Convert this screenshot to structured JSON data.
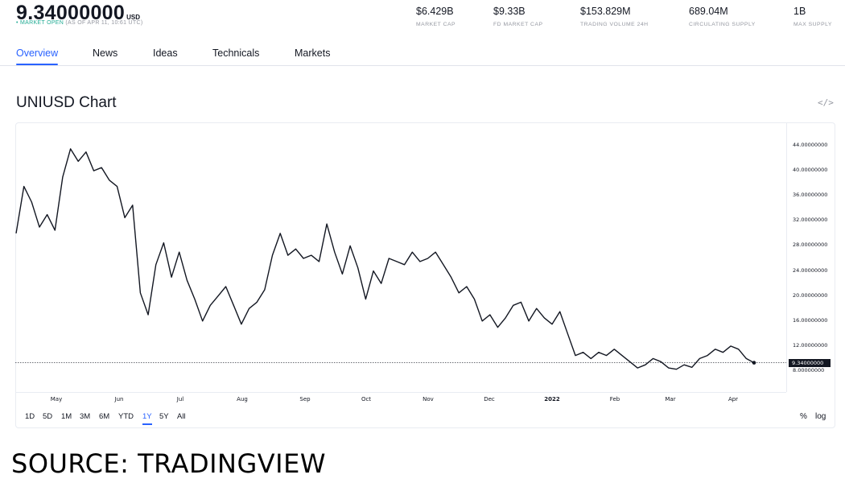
{
  "header": {
    "price": "9.34000000",
    "currency": "USD",
    "market_status": "MARKET OPEN",
    "as_of": "(AS OF APR 11, 10:61 UTC)"
  },
  "stats": [
    {
      "value": "$6.429B",
      "label": "MARKET CAP"
    },
    {
      "value": "$9.33B",
      "label": "FD MARKET CAP"
    },
    {
      "value": "$153.829M",
      "label": "TRADING VOLUME 24H"
    },
    {
      "value": "689.04M",
      "label": "CIRCULATING SUPPLY"
    },
    {
      "value": "1B",
      "label": "MAX SUPPLY"
    }
  ],
  "tabs": [
    {
      "label": "Overview",
      "active": true
    },
    {
      "label": "News"
    },
    {
      "label": "Ideas"
    },
    {
      "label": "Technicals"
    },
    {
      "label": "Markets"
    }
  ],
  "chart_section": {
    "title": "UNIUSD Chart",
    "embed_icon": "</>",
    "current_price_label": "9.34000000"
  },
  "ranges": [
    "1D",
    "5D",
    "1M",
    "3M",
    "6M",
    "YTD",
    "1Y",
    "5Y",
    "All"
  ],
  "active_range": "1Y",
  "scale_buttons": [
    "%",
    "log"
  ],
  "source_caption": "SOURCE: TRADINGVIEW",
  "colors": {
    "accent": "#2962ff",
    "market_open": "#22ab94",
    "line": "#131722",
    "muted": "#9598a1"
  },
  "chart_data": {
    "type": "line",
    "title": "UNIUSD Chart",
    "xlabel": "",
    "ylabel": "USD",
    "x_tick_labels": [
      "May",
      "Jun",
      "Jul",
      "Aug",
      "Sep",
      "Oct",
      "Nov",
      "Dec",
      "2022",
      "Feb",
      "Mar",
      "Apr"
    ],
    "y_tick_labels": [
      "44.00000000",
      "40.00000000",
      "36.00000000",
      "32.00000000",
      "28.00000000",
      "24.00000000",
      "20.00000000",
      "16.00000000",
      "12.00000000",
      "8.00000000"
    ],
    "ylim": [
      6.5,
      46
    ],
    "grid": false,
    "legend": null,
    "current_value": 9.34,
    "series": [
      {
        "name": "UNIUSD",
        "x": [
          "Apr 12",
          "Apr 14",
          "Apr 18",
          "Apr 22",
          "Apr 26",
          "Apr 30",
          "May 4",
          "May 7",
          "May 10",
          "May 13",
          "May 16",
          "May 19",
          "May 21",
          "May 23",
          "May 25",
          "May 28",
          "Jun 1",
          "Jun 4",
          "Jun 8",
          "Jun 12",
          "Jun 16",
          "Jun 20",
          "Jun 24",
          "Jun 28",
          "Jul 2",
          "Jul 6",
          "Jul 10",
          "Jul 14",
          "Jul 18",
          "Jul 22",
          "Jul 26",
          "Jul 30",
          "Aug 3",
          "Aug 7",
          "Aug 11",
          "Aug 15",
          "Aug 19",
          "Aug 23",
          "Aug 27",
          "Aug 31",
          "Sep 3",
          "Sep 7",
          "Sep 11",
          "Sep 15",
          "Sep 19",
          "Sep 23",
          "Sep 27",
          "Oct 1",
          "Oct 5",
          "Oct 9",
          "Oct 13",
          "Oct 17",
          "Oct 21",
          "Oct 25",
          "Oct 29",
          "Nov 2",
          "Nov 6",
          "Nov 10",
          "Nov 14",
          "Nov 18",
          "Nov 22",
          "Nov 26",
          "Nov 30",
          "Dec 4",
          "Dec 8",
          "Dec 12",
          "Dec 16",
          "Dec 20",
          "Dec 24",
          "Dec 28",
          "Jan 1",
          "Jan 5",
          "Jan 9",
          "Jan 13",
          "Jan 17",
          "Jan 21",
          "Jan 25",
          "Jan 29",
          "Feb 2",
          "Feb 6",
          "Feb 10",
          "Feb 14",
          "Feb 18",
          "Feb 22",
          "Feb 26",
          "Mar 2",
          "Mar 6",
          "Mar 10",
          "Mar 14",
          "Mar 18",
          "Mar 22",
          "Mar 26",
          "Mar 30",
          "Apr 3",
          "Apr 7",
          "Apr 11"
        ],
        "values": [
          30.0,
          37.5,
          35.0,
          31.0,
          33.0,
          30.5,
          39.0,
          43.5,
          41.5,
          43.0,
          40.0,
          40.5,
          38.5,
          37.5,
          32.5,
          34.5,
          20.5,
          17.0,
          25.0,
          28.5,
          23.0,
          27.0,
          22.5,
          19.5,
          16.0,
          18.5,
          20.0,
          21.5,
          18.5,
          15.5,
          18.0,
          19.0,
          21.0,
          26.5,
          30.0,
          26.5,
          27.5,
          26.0,
          26.5,
          25.5,
          31.5,
          27.0,
          23.5,
          28.0,
          24.5,
          19.5,
          24.0,
          22.0,
          26.0,
          25.5,
          25.0,
          27.0,
          25.5,
          26.0,
          27.0,
          25.0,
          23.0,
          20.5,
          21.5,
          19.5,
          16.0,
          17.0,
          15.0,
          16.5,
          18.5,
          19.0,
          16.0,
          18.0,
          16.5,
          15.5,
          17.5,
          14.0,
          10.5,
          11.0,
          10.0,
          11.0,
          10.5,
          11.5,
          10.5,
          9.5,
          8.5,
          9.0,
          10.0,
          9.5,
          8.5,
          8.3,
          9.0,
          8.6,
          10.0,
          10.5,
          11.5,
          11.0,
          12.0,
          11.5,
          10.0,
          9.34
        ]
      }
    ]
  }
}
